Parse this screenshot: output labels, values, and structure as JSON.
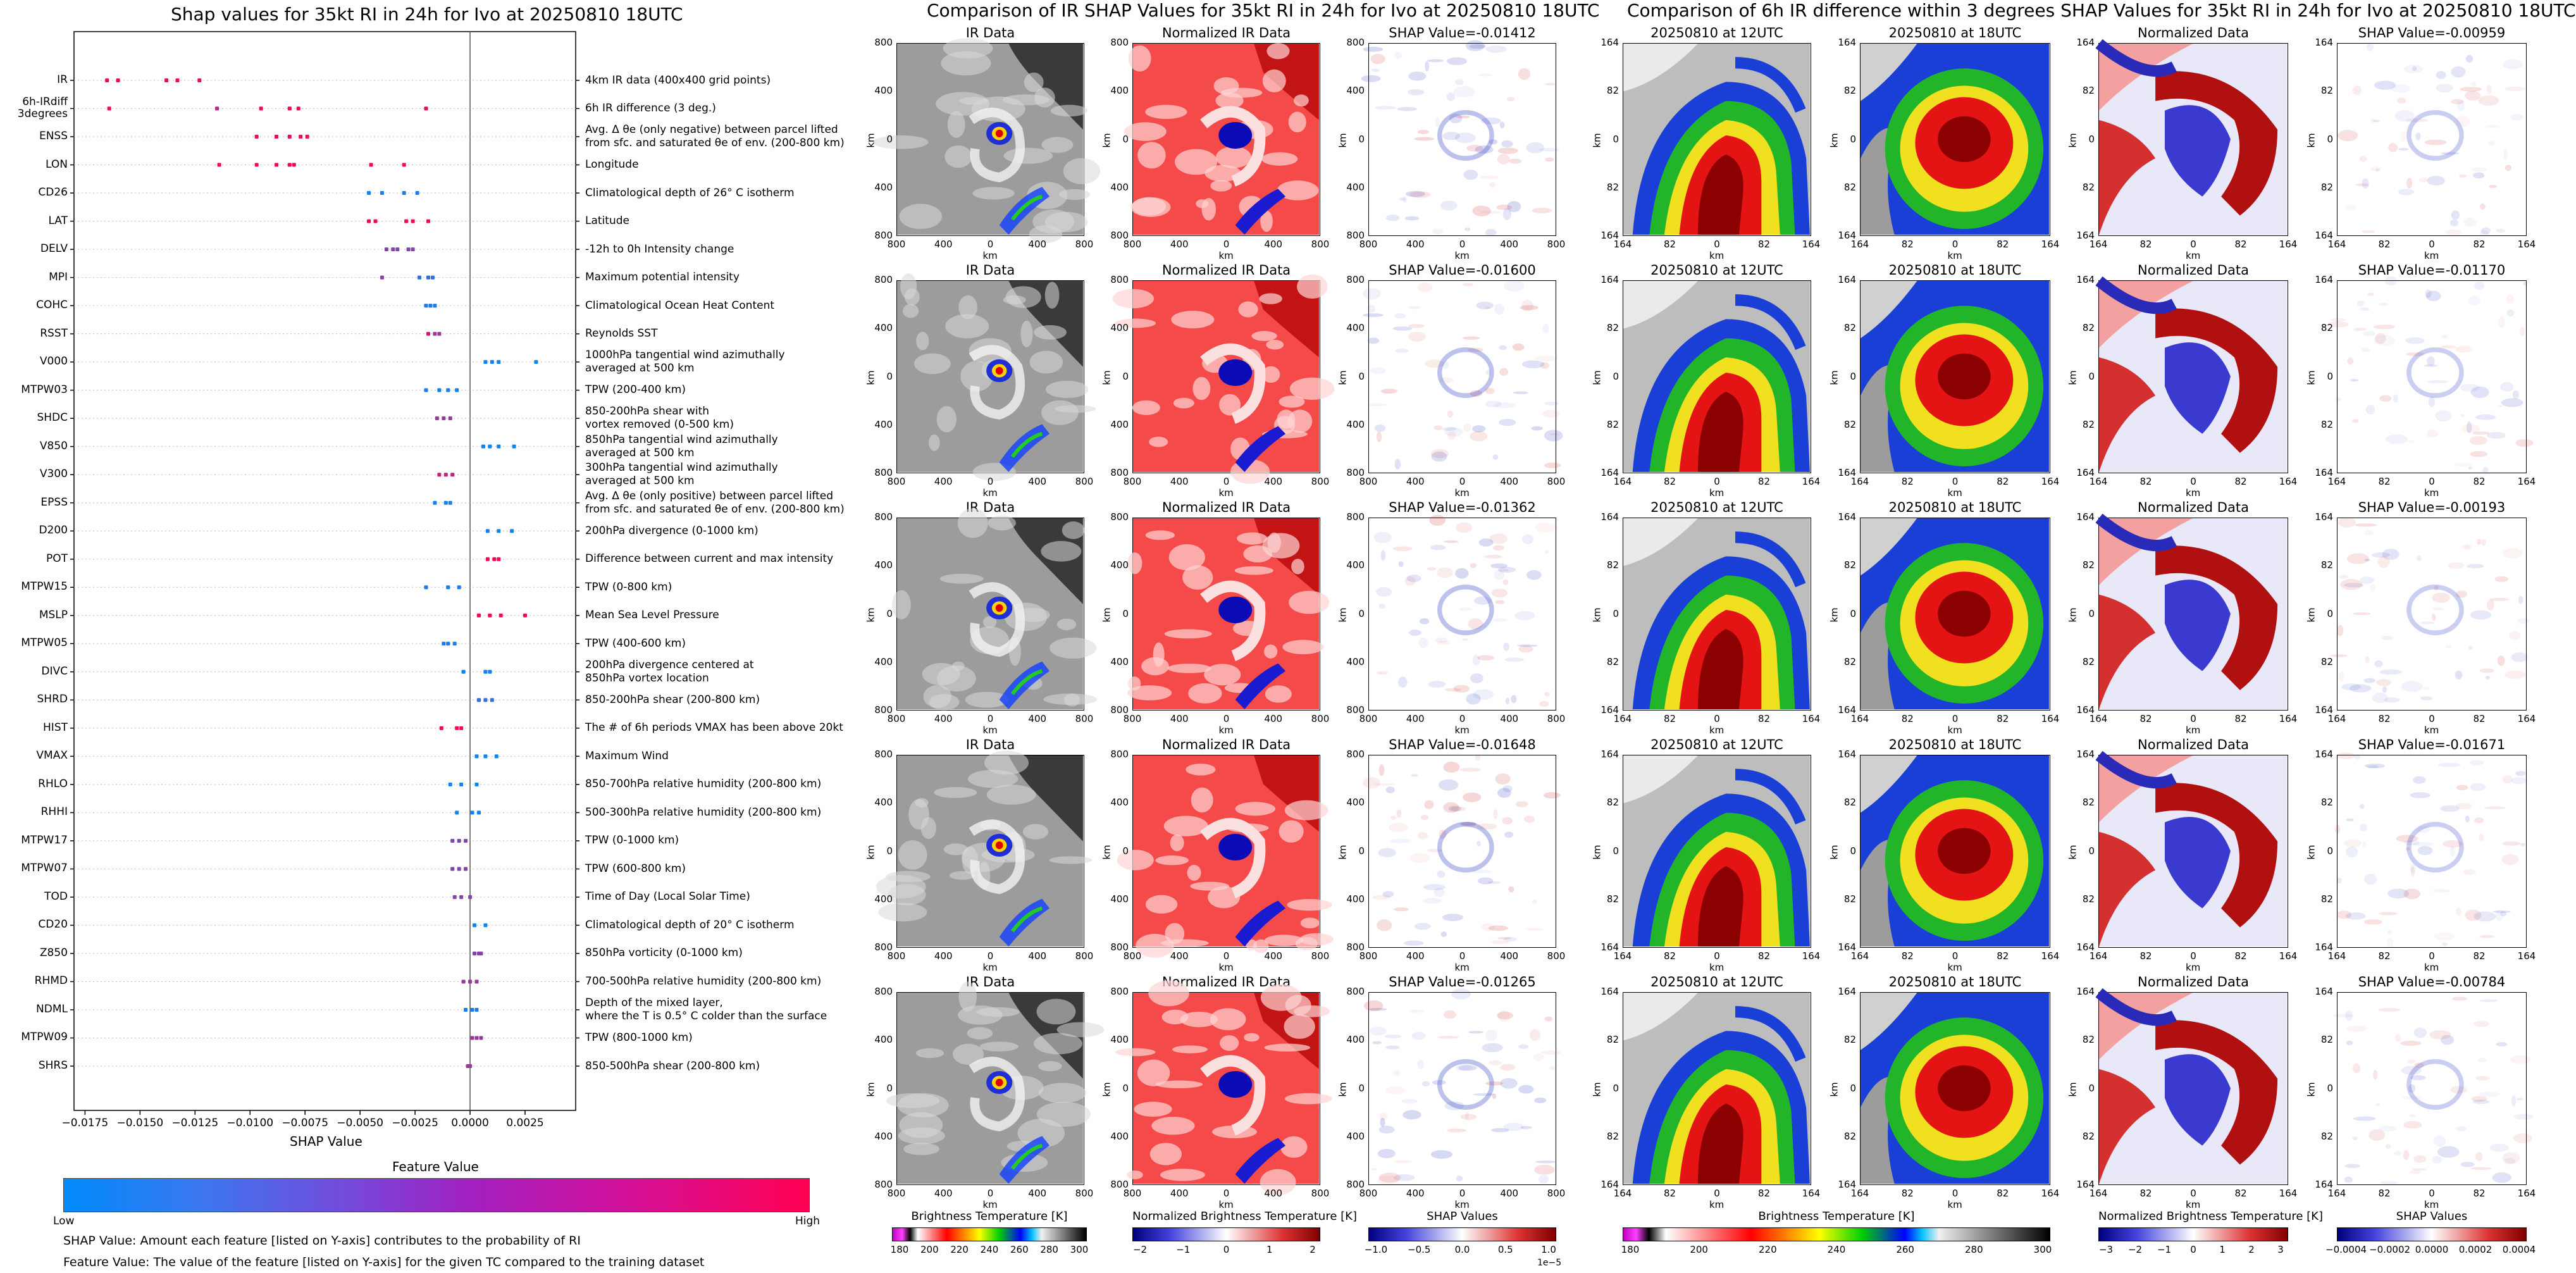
{
  "chart_data": [
    {
      "type": "scatter",
      "title": "Shap values for 35kt RI in 24h for Ivo at 20250810 18UTC",
      "xlabel": "SHAP Value",
      "xlim": [
        -0.018,
        0.0048
      ],
      "xticks": [
        "−0.0175",
        "−0.0150",
        "−0.0125",
        "−0.0100",
        "−0.0075",
        "−0.0050",
        "−0.0025",
        "0.0000",
        "0.0025"
      ],
      "xtick_values": [
        -0.0175,
        -0.015,
        -0.0125,
        -0.01,
        -0.0075,
        -0.005,
        -0.0025,
        0.0,
        0.0025
      ],
      "colorbar": {
        "label": "Feature Value",
        "low": "Low",
        "high": "High",
        "low_color": "#008bfb",
        "high_color": "#ff0052"
      },
      "notes": [
        "SHAP Value: Amount each feature [listed on Y-axis] contributes to the probability of RI",
        "Feature Value: The value of the feature [listed on Y-axis] for the given TC compared to the training dataset"
      ],
      "features": [
        {
          "name": "IR",
          "desc": "4km IR data (400x400 grid points)",
          "points": [
            [
              -0.0165,
              0.95
            ],
            [
              -0.016,
              0.95
            ],
            [
              -0.0138,
              0.95
            ],
            [
              -0.0133,
              0.95
            ],
            [
              -0.0123,
              0.95
            ]
          ]
        },
        {
          "name": "6h-IRdiff\n3degrees",
          "desc": "6h IR difference (3 deg.)",
          "points": [
            [
              -0.0164,
              0.95
            ],
            [
              -0.0115,
              0.7
            ],
            [
              -0.0095,
              0.95
            ],
            [
              -0.0082,
              0.95
            ],
            [
              -0.0078,
              0.95
            ],
            [
              -0.002,
              0.95
            ]
          ]
        },
        {
          "name": "ENSS",
          "desc": "Avg. Δ θe (only negative) between parcel lifted\nfrom sfc. and saturated θe of env. (200-800 km)",
          "points": [
            [
              -0.0097,
              0.95
            ],
            [
              -0.0088,
              0.95
            ],
            [
              -0.0082,
              0.95
            ],
            [
              -0.0077,
              0.95
            ],
            [
              -0.0074,
              0.95
            ]
          ]
        },
        {
          "name": "LON",
          "desc": "Longitude",
          "points": [
            [
              -0.0114,
              0.95
            ],
            [
              -0.0097,
              0.95
            ],
            [
              -0.0088,
              0.95
            ],
            [
              -0.0082,
              0.95
            ],
            [
              -0.008,
              0.95
            ],
            [
              -0.0045,
              0.95
            ],
            [
              -0.003,
              0.95
            ]
          ]
        },
        {
          "name": "CD26",
          "desc": "Climatological depth of 26° C isotherm",
          "points": [
            [
              -0.0046,
              0.05
            ],
            [
              -0.004,
              0.1
            ],
            [
              -0.003,
              0.1
            ],
            [
              -0.0024,
              0.1
            ]
          ]
        },
        {
          "name": "LAT",
          "desc": "Latitude",
          "points": [
            [
              -0.0046,
              0.95
            ],
            [
              -0.0043,
              0.95
            ],
            [
              -0.0029,
              0.95
            ],
            [
              -0.0026,
              0.95
            ],
            [
              -0.0019,
              0.95
            ]
          ]
        },
        {
          "name": "DELV",
          "desc": "-12h to 0h Intensity change",
          "points": [
            [
              -0.0038,
              0.5
            ],
            [
              -0.0035,
              0.5
            ],
            [
              -0.0033,
              0.5
            ],
            [
              -0.0028,
              0.5
            ],
            [
              -0.0026,
              0.5
            ]
          ]
        },
        {
          "name": "MPI",
          "desc": "Maximum potential intensity",
          "points": [
            [
              -0.004,
              0.55
            ],
            [
              -0.0023,
              0.2
            ],
            [
              -0.0019,
              0.2
            ],
            [
              -0.0017,
              0.2
            ]
          ]
        },
        {
          "name": "COHC",
          "desc": "Climatological Ocean Heat Content",
          "points": [
            [
              -0.002,
              0.1
            ],
            [
              -0.0018,
              0.1
            ],
            [
              -0.0016,
              0.1
            ]
          ]
        },
        {
          "name": "RSST",
          "desc": "Reynolds SST",
          "points": [
            [
              -0.0019,
              0.85
            ],
            [
              -0.0016,
              0.6
            ],
            [
              -0.0014,
              0.6
            ]
          ]
        },
        {
          "name": "V000",
          "desc": "1000hPa tangential wind azimuthally\naveraged at 500 km",
          "points": [
            [
              0.0007,
              0.05
            ],
            [
              0.001,
              0.05
            ],
            [
              0.0013,
              0.05
            ],
            [
              0.003,
              0.05
            ]
          ]
        },
        {
          "name": "MTPW03",
          "desc": "TPW (200-400 km)",
          "points": [
            [
              -0.002,
              0.1
            ],
            [
              -0.0014,
              0.1
            ],
            [
              -0.001,
              0.1
            ],
            [
              -0.0006,
              0.1
            ]
          ]
        },
        {
          "name": "SHDC",
          "desc": "850-200hPa shear with\nvortex removed (0-500 km)",
          "points": [
            [
              -0.0015,
              0.6
            ],
            [
              -0.0012,
              0.6
            ],
            [
              -0.0009,
              0.6
            ]
          ]
        },
        {
          "name": "V850",
          "desc": "850hPa tangential wind azimuthally\naveraged at 500 km",
          "points": [
            [
              0.0006,
              0.05
            ],
            [
              0.0009,
              0.05
            ],
            [
              0.0013,
              0.05
            ],
            [
              0.002,
              0.05
            ]
          ]
        },
        {
          "name": "V300",
          "desc": "300hPa tangential wind azimuthally\naveraged at 500 km",
          "points": [
            [
              -0.0014,
              0.75
            ],
            [
              -0.0011,
              0.75
            ],
            [
              -0.0008,
              0.75
            ]
          ]
        },
        {
          "name": "EPSS",
          "desc": "Avg. Δ θe (only positive) between parcel lifted\nfrom sfc. and saturated θe of env. (200-800 km)",
          "points": [
            [
              -0.0016,
              0.1
            ],
            [
              -0.0011,
              0.1
            ],
            [
              -0.0009,
              0.1
            ]
          ]
        },
        {
          "name": "D200",
          "desc": "200hPa divergence (0-1000 km)",
          "points": [
            [
              0.0008,
              0.05
            ],
            [
              0.0013,
              0.05
            ],
            [
              0.0019,
              0.05
            ]
          ]
        },
        {
          "name": "POT",
          "desc": "Difference between current and max intensity",
          "points": [
            [
              0.0008,
              0.95
            ],
            [
              0.0011,
              0.95
            ],
            [
              0.0013,
              0.95
            ]
          ]
        },
        {
          "name": "MTPW15",
          "desc": "TPW (0-800 km)",
          "points": [
            [
              -0.002,
              0.1
            ],
            [
              -0.001,
              0.1
            ],
            [
              -0.0005,
              0.1
            ]
          ]
        },
        {
          "name": "MSLP",
          "desc": "Mean Sea Level Pressure",
          "points": [
            [
              0.0004,
              0.95
            ],
            [
              0.0009,
              0.95
            ],
            [
              0.0014,
              0.95
            ],
            [
              0.0025,
              0.95
            ]
          ]
        },
        {
          "name": "MTPW05",
          "desc": "TPW (400-600 km)",
          "points": [
            [
              -0.0012,
              0.1
            ],
            [
              -0.001,
              0.1
            ],
            [
              -0.0007,
              0.1
            ]
          ]
        },
        {
          "name": "DIVC",
          "desc": "200hPa divergence centered at\n850hPa vortex location",
          "points": [
            [
              -0.0003,
              0.05
            ],
            [
              0.0007,
              0.05
            ],
            [
              0.0009,
              0.05
            ]
          ]
        },
        {
          "name": "SHRD",
          "desc": "850-200hPa shear (200-800 km)",
          "points": [
            [
              0.0004,
              0.2
            ],
            [
              0.0007,
              0.2
            ],
            [
              0.001,
              0.2
            ]
          ]
        },
        {
          "name": "HIST",
          "desc": "The # of 6h periods VMAX has been above 20kt",
          "points": [
            [
              -0.0013,
              0.95
            ],
            [
              -0.0006,
              0.95
            ],
            [
              -0.0004,
              0.95
            ]
          ]
        },
        {
          "name": "VMAX",
          "desc": "Maximum Wind",
          "points": [
            [
              0.0003,
              0.05
            ],
            [
              0.0007,
              0.05
            ],
            [
              0.0012,
              0.05
            ]
          ]
        },
        {
          "name": "RHLO",
          "desc": "850-700hPa relative humidity (200-800 km)",
          "points": [
            [
              -0.0009,
              0.05
            ],
            [
              -0.0004,
              0.05
            ],
            [
              0.0003,
              0.05
            ]
          ]
        },
        {
          "name": "RHHI",
          "desc": "500-300hPa relative humidity (200-800 km)",
          "points": [
            [
              -0.0006,
              0.05
            ],
            [
              0.0001,
              0.05
            ],
            [
              0.0004,
              0.05
            ]
          ]
        },
        {
          "name": "MTPW17",
          "desc": "TPW (0-1000 km)",
          "points": [
            [
              -0.0008,
              0.5
            ],
            [
              -0.0005,
              0.5
            ],
            [
              -0.0002,
              0.5
            ]
          ]
        },
        {
          "name": "MTPW07",
          "desc": "TPW (600-800 km)",
          "points": [
            [
              -0.0008,
              0.5
            ],
            [
              -0.0005,
              0.5
            ],
            [
              -0.0002,
              0.5
            ]
          ]
        },
        {
          "name": "TOD",
          "desc": "Time of Day (Local Solar Time)",
          "points": [
            [
              -0.0007,
              0.5
            ],
            [
              -0.0004,
              0.5
            ],
            [
              0.0,
              0.5
            ]
          ]
        },
        {
          "name": "CD20",
          "desc": "Climatological depth of 20° C isotherm",
          "points": [
            [
              0.0002,
              0.05
            ],
            [
              0.0007,
              0.05
            ]
          ]
        },
        {
          "name": "Z850",
          "desc": "850hPa vorticity (0-1000 km)",
          "points": [
            [
              0.0002,
              0.5
            ],
            [
              0.0004,
              0.5
            ],
            [
              0.0005,
              0.5
            ]
          ]
        },
        {
          "name": "RHMD",
          "desc": "700-500hPa relative humidity (200-800 km)",
          "points": [
            [
              -0.0003,
              0.6
            ],
            [
              0.0,
              0.6
            ],
            [
              0.0003,
              0.6
            ]
          ]
        },
        {
          "name": "NDML",
          "desc": "Depth of the mixed layer,\nwhere the T is 0.5° C colder than the surface",
          "points": [
            [
              -0.0002,
              0.1
            ],
            [
              0.0001,
              0.1
            ],
            [
              0.0003,
              0.1
            ]
          ]
        },
        {
          "name": "MTPW09",
          "desc": "TPW (800-1000 km)",
          "points": [
            [
              0.0001,
              0.6
            ],
            [
              0.0003,
              0.6
            ],
            [
              0.0005,
              0.6
            ]
          ]
        },
        {
          "name": "SHRS",
          "desc": "850-500hPa shear (200-800 km)",
          "points": [
            [
              -0.0001,
              0.6
            ],
            [
              0.0,
              0.6
            ]
          ]
        }
      ]
    },
    {
      "type": "heatmap",
      "title": "Comparison of IR SHAP Values for 35kt RI in 24h for Ivo at 20250810 18UTC",
      "columns": [
        "IR Data",
        "Normalized IR Data",
        "SHAP Value"
      ],
      "axis_ticks": [
        "800",
        "400",
        "0",
        "400",
        "800"
      ],
      "axis_unit": "km",
      "shap_values": [
        "-0.01412",
        "-0.01600",
        "-0.01362",
        "-0.01648",
        "-0.01265"
      ],
      "colorbars": [
        {
          "label": "Brightness Temperature [K]",
          "ticks": [
            "180",
            "200",
            "220",
            "240",
            "260",
            "280",
            "300"
          ]
        },
        {
          "label": "Normalized Brightness Temperature [K]",
          "ticks": [
            "−2",
            "−1",
            "0",
            "1",
            "2"
          ]
        },
        {
          "label": "SHAP Values",
          "ticks": [
            "−1.0",
            "−0.5",
            "0.0",
            "0.5",
            "1.0"
          ],
          "exponent": "1e−5"
        }
      ]
    },
    {
      "type": "heatmap",
      "title": "Comparison of 6h IR difference within 3 degrees SHAP Values for 35kt RI in 24h for Ivo at 20250810 18UTC",
      "columns": [
        "20250810 at 12UTC",
        "20250810 at 18UTC",
        "Normalized Data",
        "SHAP Value"
      ],
      "axis_ticks": [
        "164",
        "82",
        "0",
        "82",
        "164"
      ],
      "axis_unit": "km",
      "shap_values": [
        "-0.00959",
        "-0.01170",
        "-0.00193",
        "-0.01671",
        "-0.00784"
      ],
      "colorbars": [
        {
          "label": "Brightness Temperature [K]",
          "ticks": [
            "180",
            "200",
            "220",
            "240",
            "260",
            "280",
            "300"
          ]
        },
        {
          "label": "Normalized Brightness Temperature [K]",
          "ticks": [
            "−3",
            "−2",
            "−1",
            "0",
            "1",
            "2",
            "3"
          ]
        },
        {
          "label": "SHAP Values",
          "ticks": [
            "−0.0004",
            "−0.0002",
            "0.0000",
            "0.0002",
            "0.0004"
          ]
        }
      ]
    }
  ],
  "colors": {
    "feature_low": "#008bfb",
    "feature_high": "#ff0052",
    "shap_neg": "#2233aa",
    "shap_pos": "#b22222",
    "sea_red": "#f53a3a",
    "eye_blue": "#1010b0"
  }
}
